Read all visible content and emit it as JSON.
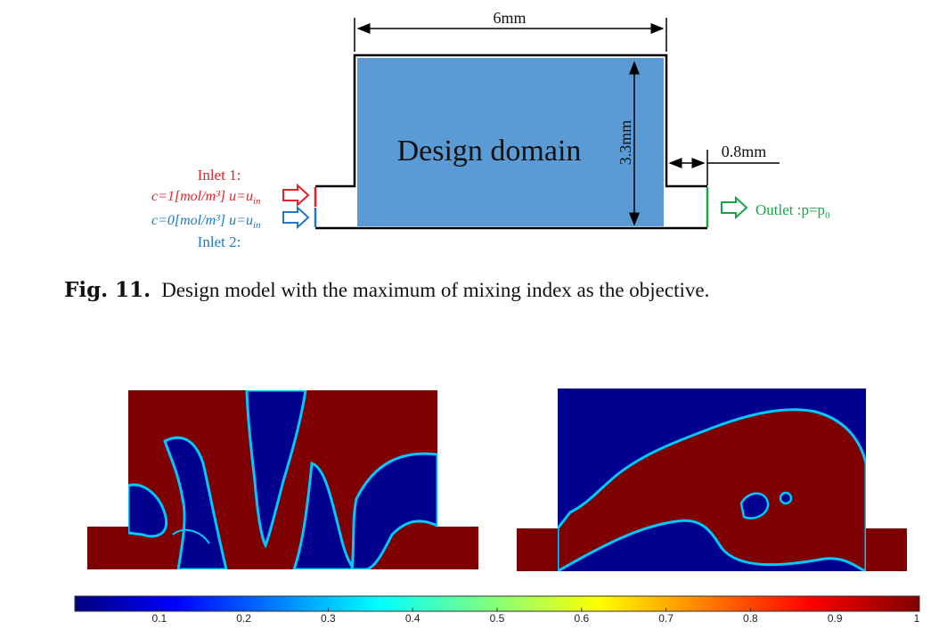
{
  "top_figure": {
    "width_label": "6mm",
    "height_label": "3.3mm",
    "outlet_length_label": "0.8mm",
    "domain_label": "Design domain",
    "inlet1": {
      "title": "Inlet 1:",
      "condition": "c=1[mol/m³] u=u",
      "subscript": "in",
      "color": "#e8202a"
    },
    "inlet2": {
      "title": "Inlet 2:",
      "condition": "c=0[mol/m³] u=u",
      "subscript": "in",
      "color": "#1f78c8"
    },
    "outlet": {
      "label": "Outlet :p=p",
      "subscript": "0",
      "color": "#1aa34a"
    },
    "domain_color": "#5b9bd5"
  },
  "caption": {
    "label": "Fig. 11.",
    "text": "Design model with the maximum of mixing index as the objective."
  },
  "colorbar": {
    "ticks": [
      "0.1",
      "0.2",
      "0.3",
      "0.4",
      "0.5",
      "0.6",
      "0.7",
      "0.8",
      "0.9",
      "1"
    ],
    "range": [
      0,
      1
    ],
    "colors": [
      "#00007f",
      "#0000ff",
      "#00ffff",
      "#ffff00",
      "#ff0000",
      "#7f0000"
    ]
  },
  "result_colors": {
    "high": "#7f0000",
    "low": "#00008f",
    "edge": "#00c8ff"
  }
}
